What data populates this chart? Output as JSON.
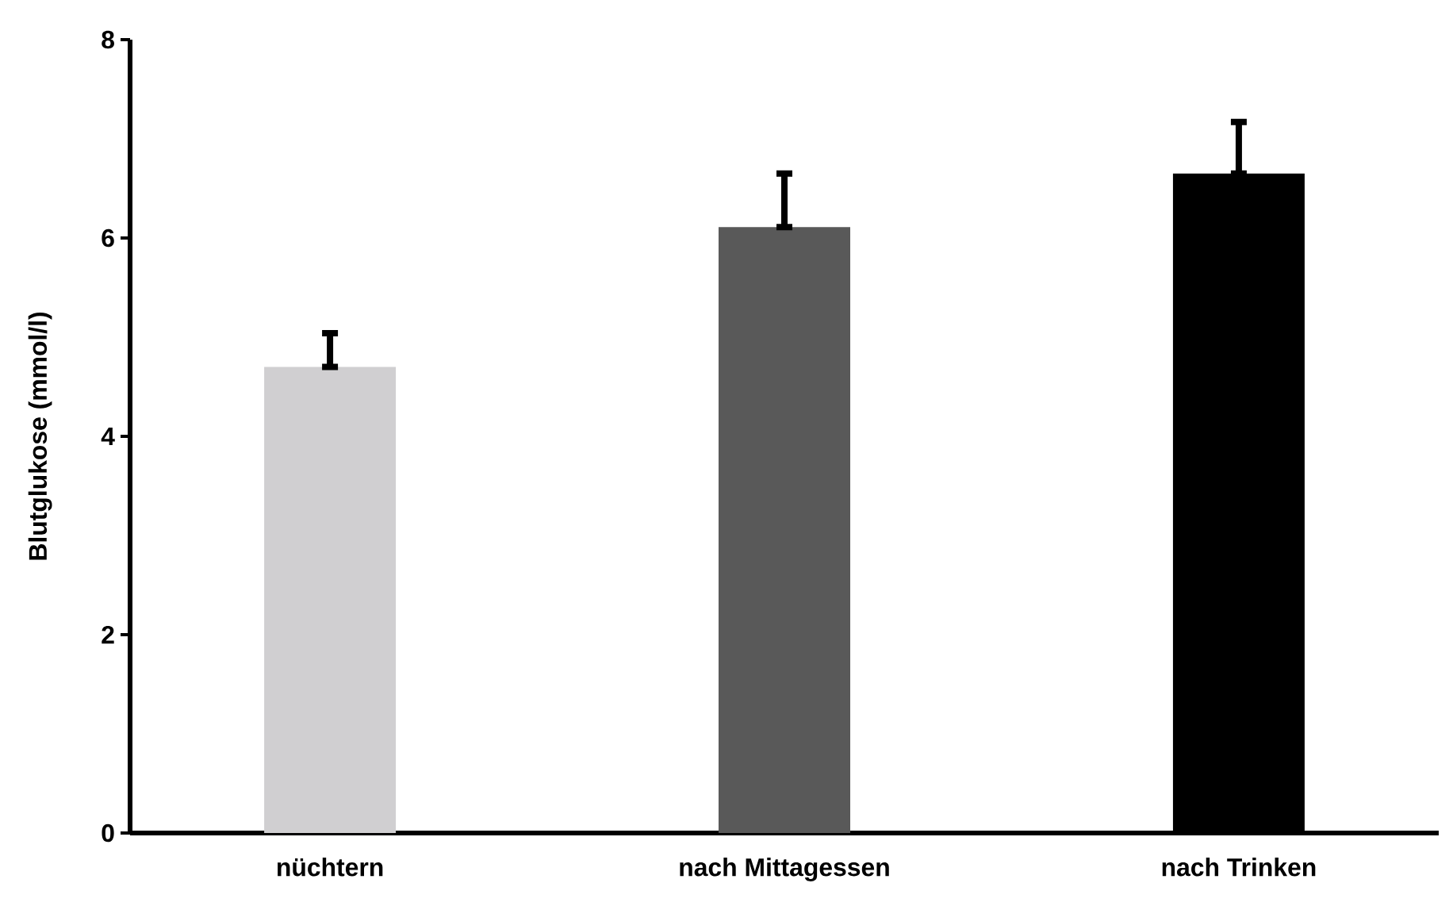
{
  "chart_data": {
    "type": "bar",
    "ylabel": "Blutglukose (mmol/l)",
    "categories": [
      "nüchtern",
      "nach Mittagessen",
      "nach Trinken"
    ],
    "values": [
      4.7,
      6.11,
      6.65
    ],
    "colors": [
      "#d0cfd1",
      "#595959",
      "#000000"
    ],
    "errors": [
      [
        4.7,
        5.04
      ],
      [
        6.11,
        6.65
      ],
      [
        6.65,
        7.17
      ]
    ],
    "ylim": [
      0,
      8
    ],
    "yticks": [
      0,
      2,
      4,
      6,
      8
    ],
    "grid": false
  }
}
